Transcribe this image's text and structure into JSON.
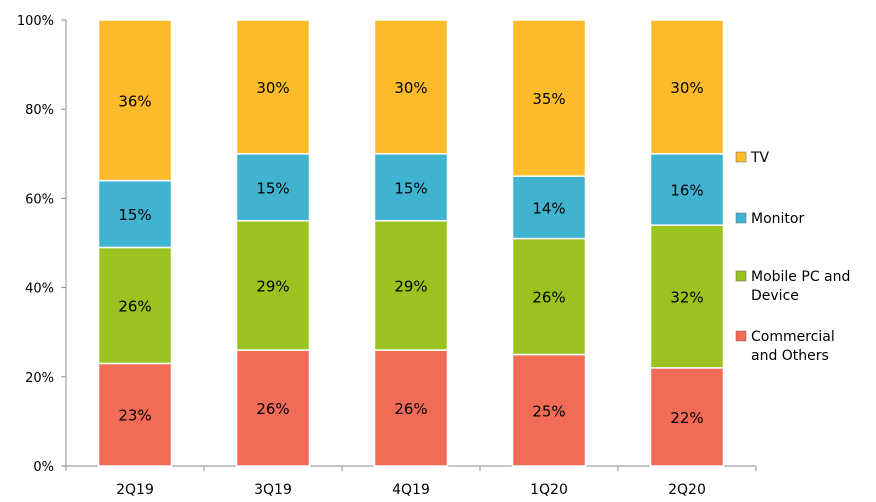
{
  "chart_data": {
    "type": "bar",
    "stacked": true,
    "percent": true,
    "categories": [
      "2Q19",
      "3Q19",
      "4Q19",
      "1Q20",
      "2Q20"
    ],
    "series": [
      {
        "name": "Commercial and Others",
        "legend_lines": [
          "Commercial",
          "and Others"
        ],
        "color": "#f26b57",
        "values": [
          23,
          26,
          26,
          25,
          22
        ],
        "labels": [
          "23%",
          "26%",
          "26%",
          "25%",
          "22%"
        ]
      },
      {
        "name": "Mobile PC and Device",
        "legend_lines": [
          "Mobile PC and",
          "Device"
        ],
        "color": "#9bc31f",
        "values": [
          26,
          29,
          29,
          26,
          32
        ],
        "labels": [
          "26%",
          "29%",
          "29%",
          "26%",
          "32%"
        ]
      },
      {
        "name": "Monitor",
        "legend_lines": [
          "Monitor"
        ],
        "color": "#3fb3cf",
        "values": [
          15,
          15,
          15,
          14,
          16
        ],
        "labels": [
          "15%",
          "15%",
          "15%",
          "14%",
          "16%"
        ]
      },
      {
        "name": "TV",
        "legend_lines": [
          "TV"
        ],
        "color": "#fbbb2b",
        "values": [
          36,
          30,
          30,
          35,
          30
        ],
        "labels": [
          "36%",
          "30%",
          "30%",
          "35%",
          "30%"
        ]
      }
    ],
    "y_ticks": [
      "0%",
      "20%",
      "40%",
      "60%",
      "80%",
      "100%"
    ],
    "ylim": [
      0,
      100
    ],
    "grid": false,
    "legend_position": "right",
    "legend_order": [
      "TV",
      "Monitor",
      "Mobile PC and Device",
      "Commercial and Others"
    ]
  }
}
